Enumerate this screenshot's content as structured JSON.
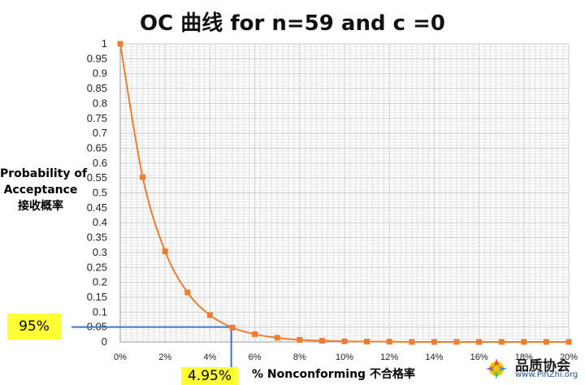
{
  "chart_data": {
    "type": "line",
    "title": "OC 曲线 for n=59 and c =0",
    "ylabel_lines": [
      "Probability of",
      "Acceptance",
      "接收概率"
    ],
    "xlabel": "% Nonconforming 不合格率",
    "x_ticks": [
      "0%",
      "2%",
      "4%",
      "6%",
      "8%",
      "10%",
      "12%",
      "14%",
      "16%",
      "18%",
      "20%"
    ],
    "y_ticks": [
      "0",
      "0.05",
      "0.1",
      "0.15",
      "0.2",
      "0.25",
      "0.3",
      "0.35",
      "0.4",
      "0.45",
      "0.5",
      "0.55",
      "0.6",
      "0.65",
      "0.7",
      "0.75",
      "0.8",
      "0.85",
      "0.9",
      "0.95",
      "1"
    ],
    "xlim": [
      0,
      20
    ],
    "ylim": [
      0,
      1
    ],
    "grid": true,
    "series": [
      {
        "color": "#ed7d31",
        "x": [
          0,
          1,
          2,
          3,
          4,
          5,
          6,
          7,
          8,
          9,
          10,
          11,
          12,
          13,
          14,
          15,
          16,
          17,
          18,
          19,
          20
        ],
        "y": [
          1,
          0.553,
          0.304,
          0.166,
          0.09,
          0.048,
          0.026,
          0.014,
          0.007,
          0.004,
          0.002,
          0.001,
          0.001,
          0,
          0,
          0,
          0,
          0,
          0,
          0,
          0
        ]
      }
    ],
    "reference": {
      "color": "#4472c4",
      "x": 4.95,
      "y": 0.05,
      "y_box_label": "95%",
      "x_box_label": "4.95%",
      "box_color": "#ffff33"
    }
  },
  "watermark": {
    "name": "品质协会",
    "url": "www.PinZhi.org"
  }
}
